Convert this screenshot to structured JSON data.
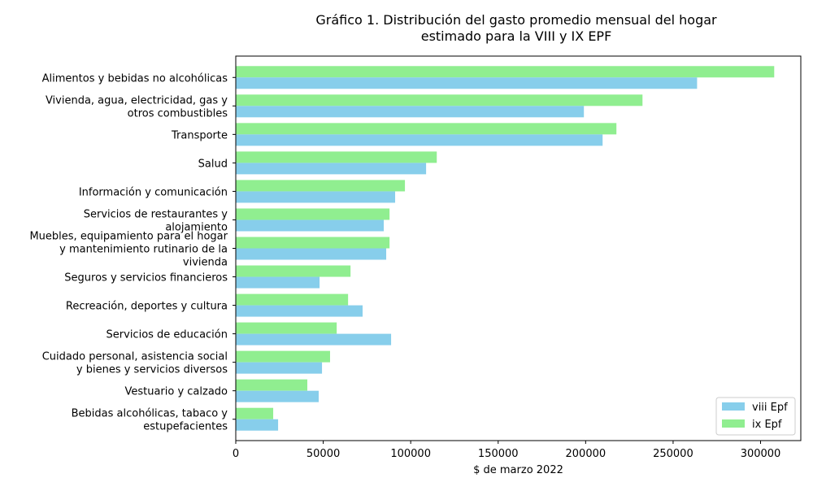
{
  "chart_data": {
    "type": "bar",
    "orientation": "horizontal",
    "title": "Gráfico 1. Distribución del gasto promedio mensual del hogar\nestimado para la VIII y IX EPF",
    "xlabel": "$ de marzo 2022",
    "ylabel": "",
    "xlim": [
      0,
      323000
    ],
    "xticks": [
      0,
      50000,
      100000,
      150000,
      200000,
      250000,
      300000
    ],
    "grid": false,
    "legend_position": "lower-right",
    "categories": [
      "Alimentos y bebidas no alcohólicas",
      "Vivienda, agua, electricidad, gas y \notros combustibles",
      "Transporte",
      "Salud",
      "Información y comunicación",
      "Servicios de restaurantes y \nalojamiento",
      "Muebles, equipamiento para el hogar \ny mantenimiento rutinario de la \nvivienda",
      "Seguros y servicios financieros",
      "Recreación, deportes y cultura",
      "Servicios de educación",
      "Cuidado personal, asistencia social \ny bienes y servicios diversos",
      "Vestuario y calzado",
      "Bebidas alcohólicas, tabaco y \nestupefacientes"
    ],
    "series": [
      {
        "name": "viii Epf",
        "color": "#87ceeb",
        "values": [
          263700,
          199000,
          209700,
          108800,
          91100,
          84600,
          86000,
          47900,
          72500,
          88800,
          49300,
          47400,
          24200
        ]
      },
      {
        "name": "ix Epf",
        "color": "#90ee90",
        "values": [
          307800,
          232500,
          217600,
          114900,
          96700,
          87900,
          87900,
          65600,
          64200,
          57700,
          53900,
          40900,
          21400
        ]
      }
    ]
  }
}
